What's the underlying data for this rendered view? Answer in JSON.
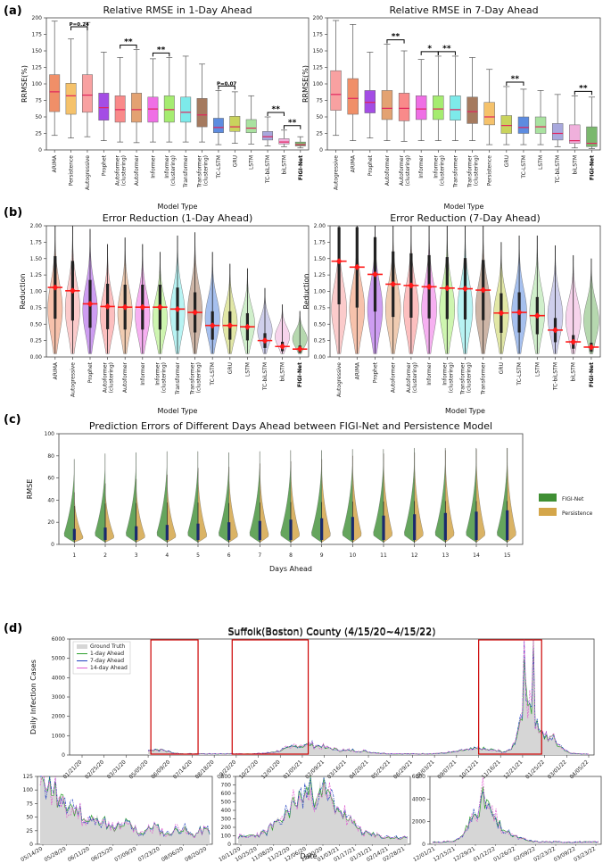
{
  "panels": [
    "(a)",
    "(b)",
    "(c)",
    "(d)"
  ],
  "chart_data": [
    {
      "id": "a1",
      "type": "box",
      "title": "Relative RMSE in 1-Day Ahead",
      "xlabel": "Model Type",
      "ylabel": "RRMSE(%)",
      "ylim": [
        0,
        200
      ],
      "yticks": [
        0,
        25,
        50,
        75,
        100,
        125,
        150,
        175,
        200
      ],
      "categories": [
        "ARIMA",
        "Persistence",
        "Autogressive",
        "Prophet",
        "Autoformer\n(clustering)",
        "Autoformer",
        "Informer",
        "Informer\n(clustering)",
        "Transformer",
        "Transformer\n(clustering)",
        "TC-LSTM",
        "GRU",
        "LSTM",
        "TC-biLSTM",
        "biLSTM",
        "FIGI-Net"
      ],
      "bold_category": "FIGI-Net",
      "colors": [
        "#f08f68",
        "#f5c26b",
        "#f8a1a1",
        "#a44de5",
        "#f98a8a",
        "#e3a272",
        "#ef6fe5",
        "#a5ec70",
        "#7deaea",
        "#a57a5f",
        "#5d8ce0",
        "#c9d35d",
        "#a9e2a0",
        "#a8a8dd",
        "#f0b0dc",
        "#7ab86d"
      ],
      "boxes": [
        {
          "min": 22,
          "q1": 58,
          "median": 88,
          "q3": 114,
          "max": 195
        },
        {
          "min": 18,
          "q1": 54,
          "median": 82,
          "q3": 101,
          "max": 168
        },
        {
          "min": 20,
          "q1": 57,
          "median": 83,
          "q3": 114,
          "max": 193
        },
        {
          "min": 14,
          "q1": 45,
          "median": 64,
          "q3": 86,
          "max": 148
        },
        {
          "min": 12,
          "q1": 42,
          "median": 61,
          "q3": 82,
          "max": 140
        },
        {
          "min": 11,
          "q1": 42,
          "median": 61,
          "q3": 86,
          "max": 152
        },
        {
          "min": 12,
          "q1": 42,
          "median": 62,
          "q3": 80,
          "max": 138
        },
        {
          "min": 12,
          "q1": 42,
          "median": 61,
          "q3": 82,
          "max": 140
        },
        {
          "min": 12,
          "q1": 42,
          "median": 57,
          "q3": 80,
          "max": 142
        },
        {
          "min": 12,
          "q1": 35,
          "median": 53,
          "q3": 78,
          "max": 130
        },
        {
          "min": 8,
          "q1": 26,
          "median": 34,
          "q3": 48,
          "max": 90
        },
        {
          "min": 10,
          "q1": 28,
          "median": 35,
          "q3": 51,
          "max": 88
        },
        {
          "min": 9,
          "q1": 26,
          "median": 33,
          "q3": 46,
          "max": 82
        },
        {
          "min": 6,
          "q1": 15,
          "median": 20,
          "q3": 28,
          "max": 50
        },
        {
          "min": 5,
          "q1": 9,
          "median": 12,
          "q3": 17,
          "max": 30
        },
        {
          "min": 3,
          "q1": 6,
          "median": 8,
          "q3": 12,
          "max": 20
        }
      ],
      "brackets": [
        {
          "from": 1,
          "to": 2,
          "label": "P=0.24"
        },
        {
          "from": 4,
          "to": 5,
          "label": "**"
        },
        {
          "from": 6,
          "to": 7,
          "label": "**"
        },
        {
          "from": 10,
          "to": 11,
          "label": "P=0.07"
        },
        {
          "from": 13,
          "to": 14,
          "label": "**"
        },
        {
          "from": 14,
          "to": 15,
          "label": "**"
        }
      ]
    },
    {
      "id": "a2",
      "type": "box",
      "title": "Relative RMSE in 7-Day Ahead",
      "xlabel": "Model Type",
      "ylabel": "RRMSE(%)",
      "ylim": [
        0,
        200
      ],
      "yticks": [
        0,
        25,
        50,
        75,
        100,
        125,
        150,
        175,
        200
      ],
      "categories": [
        "Autogressive",
        "ARIMA",
        "Prophet",
        "Autoformer",
        "Autoformer\n(clustering)",
        "Informer",
        "Informer\n(clustering)",
        "Transformer",
        "Transformer\n(clustering)",
        "Persistence",
        "GRU",
        "TC-LSTM",
        "LSTM",
        "TC-biLSTM",
        "biLSTM",
        "FIGI-Net"
      ],
      "bold_category": "FIGI-Net",
      "colors": [
        "#f8a1a1",
        "#f08f68",
        "#a44de5",
        "#e3a272",
        "#f98a8a",
        "#ef6fe5",
        "#a5ec70",
        "#7deaea",
        "#a57a5f",
        "#f5c26b",
        "#c9d35d",
        "#5d8ce0",
        "#a9e2a0",
        "#a8a8dd",
        "#f0b0dc",
        "#7ab86d"
      ],
      "boxes": [
        {
          "min": 22,
          "q1": 60,
          "median": 84,
          "q3": 120,
          "max": 196
        },
        {
          "min": 14,
          "q1": 54,
          "median": 78,
          "q3": 108,
          "max": 190
        },
        {
          "min": 18,
          "q1": 56,
          "median": 72,
          "q3": 90,
          "max": 148
        },
        {
          "min": 14,
          "q1": 46,
          "median": 63,
          "q3": 90,
          "max": 160
        },
        {
          "min": 13,
          "q1": 44,
          "median": 63,
          "q3": 86,
          "max": 150
        },
        {
          "min": 14,
          "q1": 46,
          "median": 62,
          "q3": 82,
          "max": 137
        },
        {
          "min": 14,
          "q1": 46,
          "median": 62,
          "q3": 82,
          "max": 142
        },
        {
          "min": 14,
          "q1": 45,
          "median": 61,
          "q3": 82,
          "max": 142
        },
        {
          "min": 14,
          "q1": 40,
          "median": 58,
          "q3": 80,
          "max": 140
        },
        {
          "min": 8,
          "q1": 38,
          "median": 50,
          "q3": 72,
          "max": 122
        },
        {
          "min": 8,
          "q1": 25,
          "median": 37,
          "q3": 52,
          "max": 96
        },
        {
          "min": 8,
          "q1": 25,
          "median": 34,
          "q3": 50,
          "max": 92
        },
        {
          "min": 8,
          "q1": 25,
          "median": 35,
          "q3": 50,
          "max": 90
        },
        {
          "min": 5,
          "q1": 15,
          "median": 25,
          "q3": 40,
          "max": 84
        },
        {
          "min": 3,
          "q1": 10,
          "median": 14,
          "q3": 38,
          "max": 82
        },
        {
          "min": 2,
          "q1": 5,
          "median": 10,
          "q3": 35,
          "max": 80
        }
      ],
      "brackets": [
        {
          "from": 3,
          "to": 4,
          "label": "**"
        },
        {
          "from": 5,
          "to": 6,
          "label": "*"
        },
        {
          "from": 6,
          "to": 7,
          "label": "**"
        },
        {
          "from": 10,
          "to": 11,
          "label": "**"
        },
        {
          "from": 14,
          "to": 15,
          "label": "**"
        }
      ]
    },
    {
      "id": "b1",
      "type": "violin",
      "title": "Error Reduction (1-Day Ahead)",
      "xlabel": "Model Type",
      "ylabel": "Reduction",
      "ylim": [
        0,
        2.0
      ],
      "yticks": [
        0.0,
        0.25,
        0.5,
        0.75,
        1.0,
        1.25,
        1.5,
        1.75,
        2.0
      ],
      "categories": [
        "ARIMA",
        "Autogressive",
        "Prophet",
        "Autoformer\n(clustering)",
        "Autoformer",
        "Informer",
        "Informer\n(clustering)",
        "Transformer",
        "Transformer\n(clustering)",
        "TC-LSTM",
        "GRU",
        "LSTM",
        "TC-biLSTM",
        "biLSTM",
        "FIGI-Net"
      ],
      "bold_category": "FIGI-Net",
      "colors": [
        "#f08f68",
        "#f8a1a1",
        "#a44de5",
        "#f98a8a",
        "#e3a272",
        "#ef6fe5",
        "#a5ec70",
        "#7deaea",
        "#a57a5f",
        "#5d8ce0",
        "#c9d35d",
        "#a9e2a0",
        "#a8a8dd",
        "#f0b0dc",
        "#7ab86d"
      ],
      "means": [
        1.06,
        1.01,
        0.81,
        0.77,
        0.76,
        0.76,
        0.76,
        0.73,
        0.68,
        0.48,
        0.48,
        0.46,
        0.25,
        0.16,
        0.12
      ],
      "tops": [
        2.0,
        2.0,
        1.95,
        1.72,
        1.82,
        1.72,
        1.6,
        1.85,
        1.9,
        1.6,
        1.42,
        1.35,
        1.05,
        0.8,
        0.7
      ]
    },
    {
      "id": "b2",
      "type": "violin",
      "title": "Error Reduction (7-Day Ahead)",
      "xlabel": "Model Type",
      "ylabel": "Reduction",
      "ylim": [
        0,
        2.0
      ],
      "yticks": [
        0.0,
        0.25,
        0.5,
        0.75,
        1.0,
        1.25,
        1.5,
        1.75,
        2.0
      ],
      "categories": [
        "Autogressive",
        "ARIMA",
        "Prophet",
        "Autoformer",
        "Autoformer\n(clustering)",
        "Informer",
        "Informer\n(clustering)",
        "Transformer\n(clustering)",
        "Transformer",
        "GRU",
        "TC-LSTM",
        "LSTM",
        "TC-biLSTM",
        "biLSTM",
        "FIGI-Net"
      ],
      "bold_category": "FIGI-Net",
      "colors": [
        "#f8a1a1",
        "#f08f68",
        "#a44de5",
        "#e3a272",
        "#f98a8a",
        "#ef6fe5",
        "#a5ec70",
        "#7deaea",
        "#a57a5f",
        "#c9d35d",
        "#5d8ce0",
        "#a9e2a0",
        "#a8a8dd",
        "#f0b0dc",
        "#7ab86d"
      ],
      "means": [
        1.46,
        1.37,
        1.26,
        1.11,
        1.09,
        1.07,
        1.05,
        1.04,
        1.02,
        0.67,
        0.68,
        0.63,
        0.41,
        0.23,
        0.15
      ],
      "tops": [
        2.0,
        2.0,
        2.0,
        2.0,
        2.0,
        2.0,
        2.0,
        2.0,
        2.0,
        1.75,
        1.85,
        1.85,
        1.7,
        1.55,
        1.5
      ]
    },
    {
      "id": "c",
      "type": "violin",
      "title": "Prediction Errors of Different Days Ahead between FIGI-Net and Persistence Model",
      "xlabel": "Days Ahead",
      "ylabel": "RMSE",
      "ylim": [
        0,
        100
      ],
      "yticks": [
        0,
        20,
        40,
        60,
        80,
        100
      ],
      "categories": [
        "1",
        "2",
        "3",
        "4",
        "5",
        "6",
        "7",
        "8",
        "9",
        "10",
        "11",
        "12",
        "13",
        "14",
        "15"
      ],
      "series": [
        {
          "name": "FIGI-Net",
          "color": "#3f8f34",
          "tops": [
            77,
            82,
            83,
            84,
            84,
            83,
            84,
            85,
            85,
            86,
            86,
            87,
            87,
            87,
            87
          ]
        },
        {
          "name": "Persistence",
          "color": "#d4a64a",
          "tops": [
            22,
            30,
            34,
            38,
            44,
            45,
            48,
            50,
            52,
            55,
            57,
            58,
            60,
            61,
            62
          ]
        }
      ]
    },
    {
      "id": "d-main",
      "type": "line",
      "title": "Suffolk(Boston) County (4/15/20~4/15/22)",
      "xlabel": "Date",
      "ylabel": "Daily Infection Cases",
      "ylim": [
        0,
        6000
      ],
      "yticks": [
        0,
        1000,
        2000,
        3000,
        4000,
        5000,
        6000
      ],
      "xticks": [
        "01/21/20",
        "02/25/20",
        "03/31/20",
        "05/05/20",
        "06/09/20",
        "07/14/20",
        "08/18/20",
        "09/22/20",
        "10/27/20",
        "12/01/20",
        "01/05/21",
        "02/09/21",
        "03/16/21",
        "04/20/21",
        "05/25/21",
        "06/29/21",
        "08/03/21",
        "09/07/21",
        "10/12/21",
        "11/16/21",
        "12/21/21",
        "01/25/22",
        "03/01/22",
        "04/05/22"
      ],
      "legend": [
        {
          "label": "Ground Truth",
          "color": "#d6d6d6"
        },
        {
          "label": "1-day Ahead",
          "color": "#2ca02c"
        },
        {
          "label": "7-day Ahead",
          "color": "#1f3fbf"
        },
        {
          "label": "14-day Ahead",
          "color": "#e05ad0"
        }
      ],
      "peaks": [
        {
          "date": "01/10/22",
          "value": 5750
        },
        {
          "date": "01/18/22",
          "value": 5600
        },
        {
          "date": "12/01/20",
          "value": 650
        }
      ]
    },
    {
      "id": "d-sub1",
      "type": "line",
      "ylim": [
        0,
        125
      ],
      "yticks": [
        0,
        25,
        50,
        75,
        100,
        125
      ],
      "xticks": [
        "05/14/20",
        "05/28/20",
        "06/11/20",
        "06/25/20",
        "07/09/20",
        "07/23/20",
        "08/06/20",
        "08/20/20"
      ],
      "peak_value": 115
    },
    {
      "id": "d-sub2",
      "type": "line",
      "ylim": [
        0,
        800
      ],
      "yticks": [
        0,
        100,
        200,
        300,
        400,
        500,
        600,
        700,
        800
      ],
      "xticks": [
        "10/11/20",
        "10/25/20",
        "11/08/20",
        "11/22/20",
        "12/06/20",
        "12/20/20",
        "01/03/21",
        "01/17/21",
        "01/31/21",
        "02/14/21",
        "02/28/21"
      ],
      "peak_value": 760
    },
    {
      "id": "d-sub3",
      "type": "line",
      "ylim": [
        0,
        6000
      ],
      "yticks": [
        0,
        2000,
        4000,
        6000
      ],
      "xticks": [
        "12/01/21",
        "12/15/21",
        "12/29/21",
        "01/12/22",
        "01/26/22",
        "02/09/22",
        "02/23/22",
        "03/09/22",
        "03/23/22"
      ],
      "peak_value": 5750
    }
  ]
}
